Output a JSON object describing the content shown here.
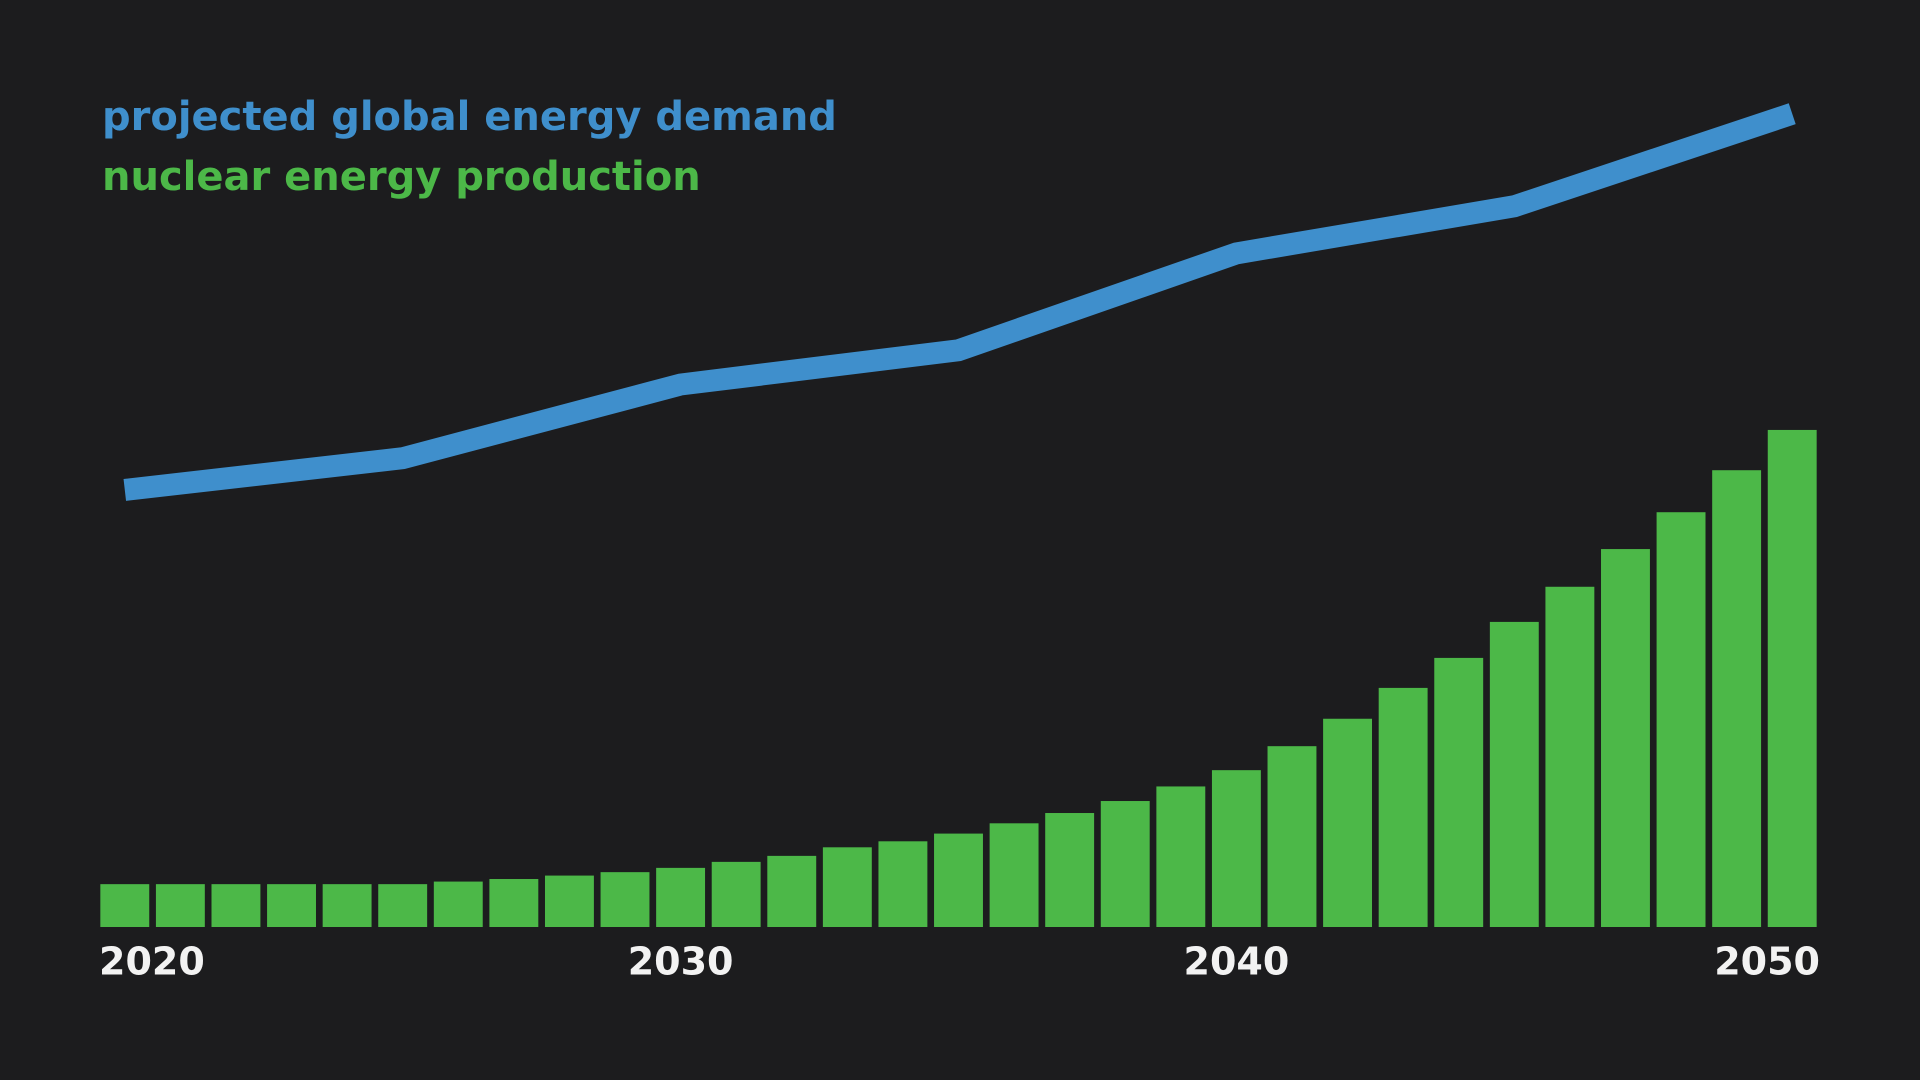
{
  "chart_data": {
    "type": "combo",
    "legend": "top-left",
    "x": [
      2020,
      2021,
      2022,
      2023,
      2024,
      2025,
      2026,
      2027,
      2028,
      2029,
      2030,
      2031,
      2032,
      2033,
      2034,
      2035,
      2036,
      2037,
      2038,
      2039,
      2040,
      2041,
      2042,
      2043,
      2044,
      2045,
      2046,
      2047,
      2048,
      2049,
      2050
    ],
    "xlim": [
      2019.5,
      2050.5
    ],
    "xticks": [
      2020,
      2030,
      2040,
      2050
    ],
    "ylim": [
      0,
      100
    ],
    "series": [
      {
        "name": "projected global energy demand",
        "type": "line",
        "color": "#3f8fcc",
        "x": [
          2020,
          2025,
          2030,
          2035,
          2040,
          2045,
          2050
        ],
        "values": [
          51,
          54.7,
          63.3,
          67.3,
          78.6,
          84.1,
          94.9
        ]
      },
      {
        "name": "nuclear energy production",
        "type": "bar",
        "color": "#4cb848",
        "values": [
          5,
          5,
          5,
          5,
          5,
          5,
          5.3,
          5.6,
          6,
          6.4,
          6.9,
          7.6,
          8.3,
          9.3,
          10,
          10.9,
          12.1,
          13.3,
          14.7,
          16.4,
          18.3,
          21.1,
          24.3,
          27.9,
          31.4,
          35.6,
          39.7,
          44.1,
          48.4,
          53.3,
          58
        ]
      }
    ]
  }
}
